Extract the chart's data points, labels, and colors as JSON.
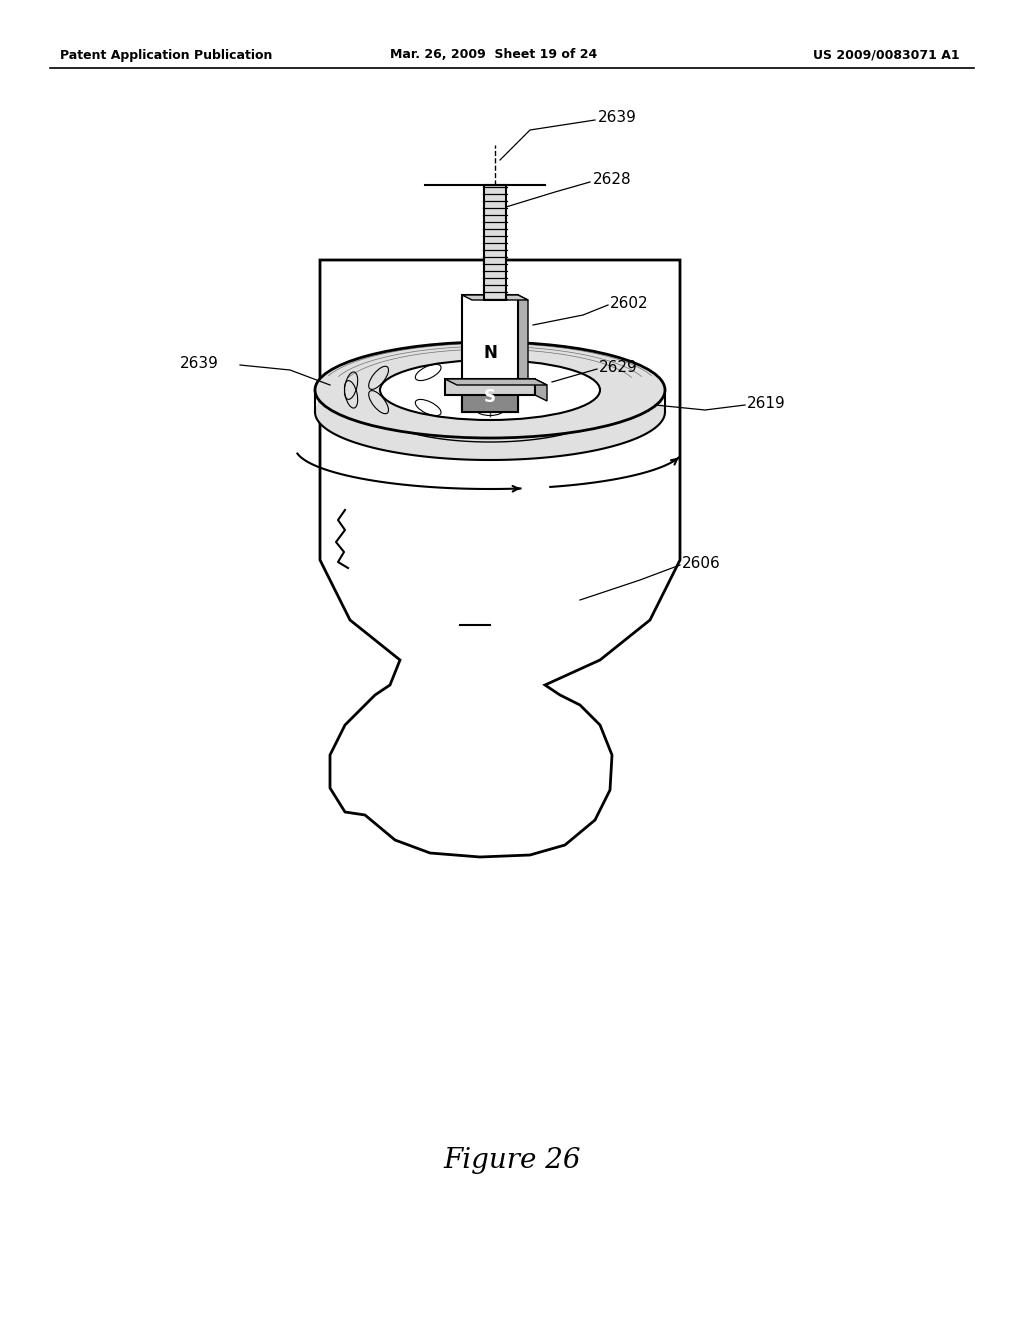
{
  "bg_color": "#ffffff",
  "header_left": "Patent Application Publication",
  "header_center": "Mar. 26, 2009  Sheet 19 of 24",
  "header_right": "US 2009/0083071 A1",
  "figure_label": "Figure 26",
  "head_color": "#ffffff",
  "head_edge": "#000000",
  "coil_outer_color": "#e0e0e0",
  "coil_inner_color": "#ffffff",
  "magnet_n_color": "#ffffff",
  "magnet_s_color": "#888888",
  "magnet_side_color": "#b0b0b0",
  "base_color": "#d0d0d0"
}
